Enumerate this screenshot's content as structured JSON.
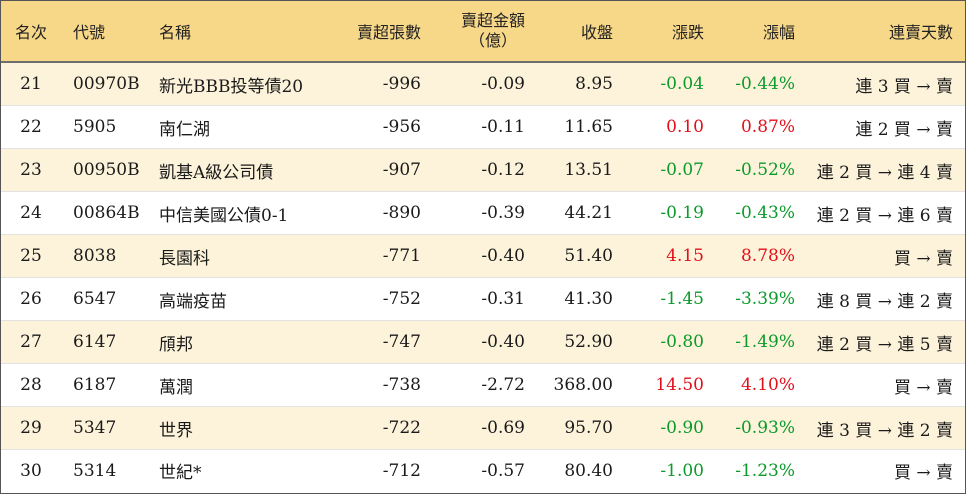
{
  "columns": {
    "rank": "名次",
    "code": "代號",
    "name": "名稱",
    "net_sell_lots": "賣超張數",
    "net_sell_amount_line1": "賣超金額",
    "net_sell_amount_line2": "（億）",
    "close": "收盤",
    "change": "漲跌",
    "change_pct": "漲幅",
    "consecutive_days": "連賣天數"
  },
  "colors": {
    "header_bg": "#f7d788",
    "stripe_bg": "#fdf3da",
    "up": "#e0101a",
    "down": "#0b9a2b"
  },
  "rows": [
    {
      "rank": "21",
      "code": "00970B",
      "name": "新光BBB投等債20",
      "lots": "-996",
      "amount": "-0.09",
      "close": "8.95",
      "change": "-0.04",
      "pct": "-0.44%",
      "dir": "down",
      "days": "連 3 買 → 賣"
    },
    {
      "rank": "22",
      "code": "5905",
      "name": "南仁湖",
      "lots": "-956",
      "amount": "-0.11",
      "close": "11.65",
      "change": "0.10",
      "pct": "0.87%",
      "dir": "up",
      "days": "連 2 買 → 賣"
    },
    {
      "rank": "23",
      "code": "00950B",
      "name": "凱基A級公司債",
      "lots": "-907",
      "amount": "-0.12",
      "close": "13.51",
      "change": "-0.07",
      "pct": "-0.52%",
      "dir": "down",
      "days": "連 2 買 → 連 4 賣"
    },
    {
      "rank": "24",
      "code": "00864B",
      "name": "中信美國公債0-1",
      "lots": "-890",
      "amount": "-0.39",
      "close": "44.21",
      "change": "-0.19",
      "pct": "-0.43%",
      "dir": "down",
      "days": "連 2 買 → 連 6 賣"
    },
    {
      "rank": "25",
      "code": "8038",
      "name": "長園科",
      "lots": "-771",
      "amount": "-0.40",
      "close": "51.40",
      "change": "4.15",
      "pct": "8.78%",
      "dir": "up",
      "days": "買 → 賣"
    },
    {
      "rank": "26",
      "code": "6547",
      "name": "高端疫苗",
      "lots": "-752",
      "amount": "-0.31",
      "close": "41.30",
      "change": "-1.45",
      "pct": "-3.39%",
      "dir": "down",
      "days": "連 8 買 → 連 2 賣"
    },
    {
      "rank": "27",
      "code": "6147",
      "name": "頎邦",
      "lots": "-747",
      "amount": "-0.40",
      "close": "52.90",
      "change": "-0.80",
      "pct": "-1.49%",
      "dir": "down",
      "days": "連 2 買 → 連 5 賣"
    },
    {
      "rank": "28",
      "code": "6187",
      "name": "萬潤",
      "lots": "-738",
      "amount": "-2.72",
      "close": "368.00",
      "change": "14.50",
      "pct": "4.10%",
      "dir": "up",
      "days": "買 → 賣"
    },
    {
      "rank": "29",
      "code": "5347",
      "name": "世界",
      "lots": "-722",
      "amount": "-0.69",
      "close": "95.70",
      "change": "-0.90",
      "pct": "-0.93%",
      "dir": "down",
      "days": "連 3 買 → 連 2 賣"
    },
    {
      "rank": "30",
      "code": "5314",
      "name": "世紀*",
      "lots": "-712",
      "amount": "-0.57",
      "close": "80.40",
      "change": "-1.00",
      "pct": "-1.23%",
      "dir": "down",
      "days": "買 → 賣"
    }
  ]
}
